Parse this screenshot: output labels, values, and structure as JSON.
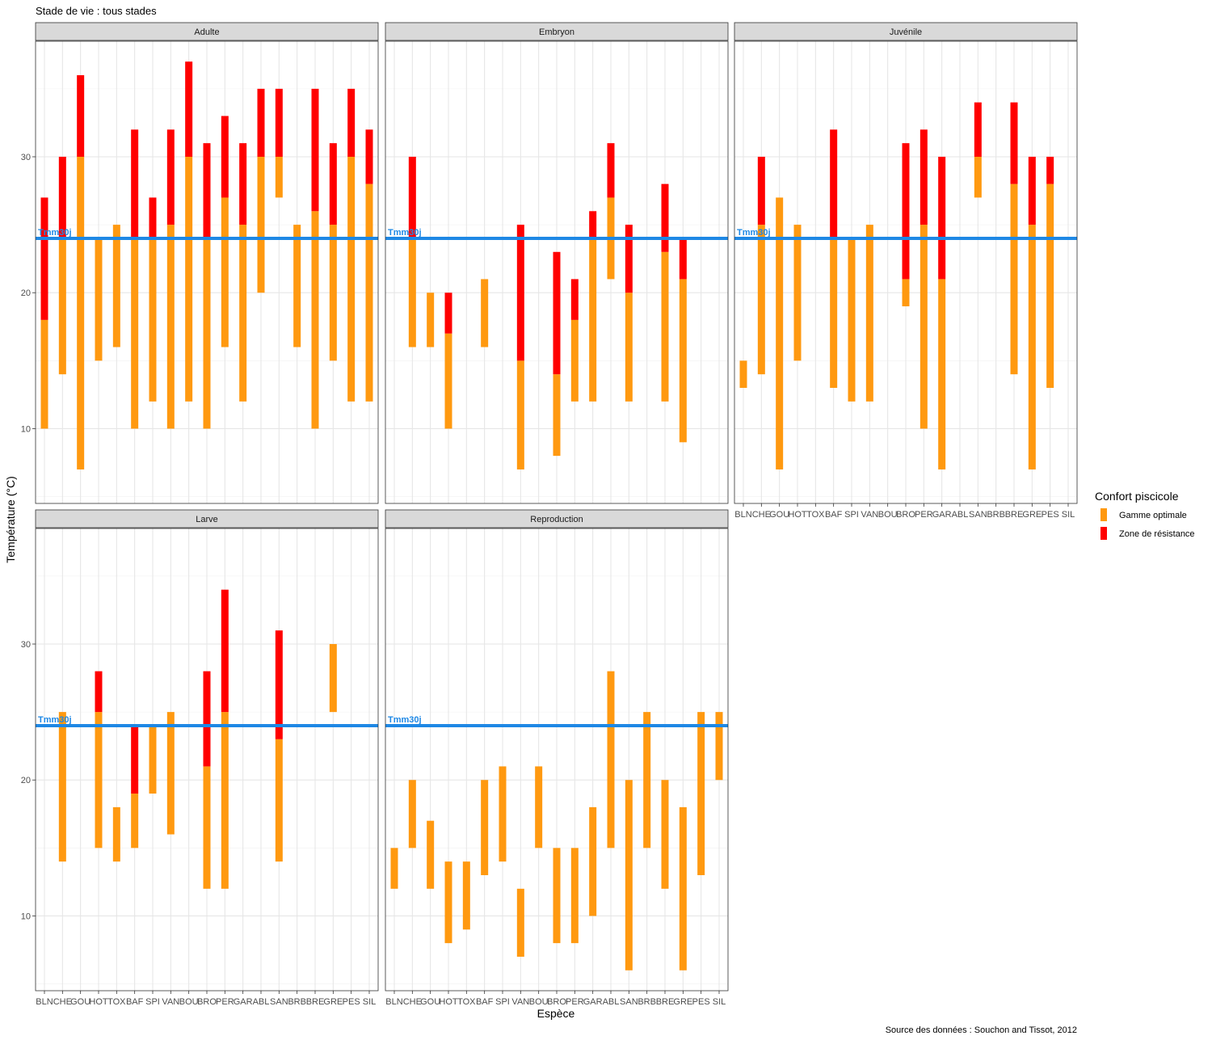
{
  "chart_data": {
    "type": "bar",
    "subtype": "range-bar-faceted",
    "title": "Stade de vie : tous stades",
    "xlabel": "Espèce",
    "ylabel": "Température (°C)",
    "caption": "Source des données : Souchon and Tissot, 2012",
    "ylim": [
      4.5,
      38.5
    ],
    "y_ticks": [
      10,
      20,
      30
    ],
    "grid": true,
    "categories": [
      "BLN",
      "CHE",
      "GOU",
      "HOT",
      "TOX",
      "BAF",
      "SPI",
      "VAN",
      "BOU",
      "BRO",
      "PER",
      "GAR",
      "ABL",
      "SAN",
      "BRB",
      "BRE",
      "GRE",
      "PES",
      "SIL"
    ],
    "reference_line": {
      "label": "Tmm30j",
      "value": 24,
      "color": "#1E88E5"
    },
    "legend": {
      "title": "Confort piscicole",
      "position": "right",
      "items": [
        {
          "label": "Gamme optimale",
          "color": "#FF9910"
        },
        {
          "label": "Zone de résistance",
          "color": "#FF0000"
        }
      ]
    },
    "facets": [
      {
        "name": "Adulte",
        "bars": [
          {
            "species": "BLN",
            "optimal": [
              10,
              18
            ],
            "resistance": [
              18,
              27
            ]
          },
          {
            "species": "CHE",
            "optimal": [
              14,
              24
            ],
            "resistance": [
              24,
              30
            ]
          },
          {
            "species": "GOU",
            "optimal": [
              7,
              30
            ],
            "resistance": [
              30,
              36
            ]
          },
          {
            "species": "HOT",
            "optimal": [
              15,
              24
            ]
          },
          {
            "species": "TOX",
            "optimal": [
              16,
              25
            ]
          },
          {
            "species": "BAF",
            "optimal": [
              10,
              24
            ],
            "resistance": [
              24,
              32
            ]
          },
          {
            "species": "SPI",
            "optimal": [
              12,
              24
            ],
            "resistance": [
              24,
              27
            ]
          },
          {
            "species": "VAN",
            "optimal": [
              10,
              25
            ],
            "resistance": [
              25,
              32
            ]
          },
          {
            "species": "BOU",
            "optimal": [
              12,
              30
            ],
            "resistance": [
              30,
              37
            ]
          },
          {
            "species": "BRO",
            "optimal": [
              10,
              24
            ],
            "resistance": [
              24,
              31
            ]
          },
          {
            "species": "PER",
            "optimal": [
              16,
              27
            ],
            "resistance": [
              27,
              33
            ]
          },
          {
            "species": "GAR",
            "optimal": [
              12,
              25
            ],
            "resistance": [
              25,
              31
            ]
          },
          {
            "species": "ABL",
            "optimal": [
              20,
              30
            ],
            "resistance": [
              30,
              35
            ]
          },
          {
            "species": "SAN",
            "optimal": [
              27,
              30
            ],
            "resistance": [
              30,
              35
            ]
          },
          {
            "species": "BRB",
            "optimal": [
              16,
              25
            ]
          },
          {
            "species": "BRE",
            "optimal": [
              10,
              26
            ],
            "resistance": [
              26,
              35
            ]
          },
          {
            "species": "GRE",
            "optimal": [
              15,
              25
            ],
            "resistance": [
              25,
              31
            ]
          },
          {
            "species": "PES",
            "optimal": [
              12,
              30
            ],
            "resistance": [
              30,
              35
            ]
          },
          {
            "species": "SIL",
            "optimal": [
              12,
              28
            ],
            "resistance": [
              28,
              32
            ]
          }
        ]
      },
      {
        "name": "Embryon",
        "bars": [
          {
            "species": "CHE",
            "optimal": [
              16,
              24
            ],
            "resistance": [
              24,
              30
            ]
          },
          {
            "species": "GOU",
            "optimal": [
              16,
              20
            ]
          },
          {
            "species": "HOT",
            "optimal": [
              10,
              17
            ],
            "resistance": [
              17,
              20
            ]
          },
          {
            "species": "BAF",
            "optimal": [
              16,
              21
            ]
          },
          {
            "species": "VAN",
            "optimal": [
              7,
              15
            ],
            "resistance": [
              15,
              25
            ]
          },
          {
            "species": "BRO",
            "optimal": [
              8,
              14
            ],
            "resistance": [
              14,
              23
            ]
          },
          {
            "species": "PER",
            "optimal": [
              12,
              18
            ],
            "resistance": [
              18,
              21
            ]
          },
          {
            "species": "GAR",
            "optimal": [
              12,
              24
            ],
            "resistance": [
              24,
              26
            ]
          },
          {
            "species": "ABL",
            "optimal": [
              21,
              27
            ],
            "resistance": [
              27,
              31
            ]
          },
          {
            "species": "SAN",
            "optimal": [
              12,
              20
            ],
            "resistance": [
              20,
              25
            ]
          },
          {
            "species": "BRE",
            "optimal": [
              12,
              23
            ],
            "resistance": [
              23,
              28
            ]
          },
          {
            "species": "GRE",
            "optimal": [
              9,
              21
            ],
            "resistance": [
              21,
              24
            ]
          }
        ]
      },
      {
        "name": "Juvénile",
        "bars": [
          {
            "species": "BLN",
            "optimal": [
              13,
              15
            ]
          },
          {
            "species": "CHE",
            "optimal": [
              14,
              25
            ],
            "resistance": [
              25,
              30
            ]
          },
          {
            "species": "GOU",
            "optimal": [
              7,
              27
            ]
          },
          {
            "species": "HOT",
            "optimal": [
              15,
              25
            ]
          },
          {
            "species": "BAF",
            "optimal": [
              13,
              24
            ],
            "resistance": [
              24,
              32
            ]
          },
          {
            "species": "SPI",
            "optimal": [
              12,
              24
            ]
          },
          {
            "species": "VAN",
            "optimal": [
              12,
              25
            ]
          },
          {
            "species": "BRO",
            "optimal": [
              19,
              21
            ],
            "resistance": [
              21,
              31
            ]
          },
          {
            "species": "PER",
            "optimal": [
              10,
              25
            ],
            "resistance": [
              25,
              32
            ]
          },
          {
            "species": "GAR",
            "optimal": [
              7,
              21
            ],
            "resistance": [
              21,
              30
            ]
          },
          {
            "species": "SAN",
            "optimal": [
              27,
              30
            ],
            "resistance": [
              30,
              34
            ]
          },
          {
            "species": "BRE",
            "optimal": [
              14,
              28
            ],
            "resistance": [
              28,
              34
            ]
          },
          {
            "species": "GRE",
            "optimal": [
              7,
              25
            ],
            "resistance": [
              25,
              30
            ]
          },
          {
            "species": "PES",
            "optimal": [
              13,
              28
            ],
            "resistance": [
              28,
              30
            ]
          }
        ]
      },
      {
        "name": "Larve",
        "bars": [
          {
            "species": "CHE",
            "optimal": [
              14,
              25
            ]
          },
          {
            "species": "HOT",
            "optimal": [
              15,
              25
            ],
            "resistance": [
              25,
              28
            ]
          },
          {
            "species": "TOX",
            "optimal": [
              14,
              18
            ]
          },
          {
            "species": "BAF",
            "optimal": [
              15,
              19
            ],
            "resistance": [
              19,
              24
            ]
          },
          {
            "species": "SPI",
            "optimal": [
              19,
              24
            ]
          },
          {
            "species": "VAN",
            "optimal": [
              16,
              25
            ]
          },
          {
            "species": "BRO",
            "optimal": [
              12,
              21
            ],
            "resistance": [
              21,
              28
            ]
          },
          {
            "species": "PER",
            "optimal": [
              12,
              25
            ],
            "resistance": [
              25,
              34
            ]
          },
          {
            "species": "SAN",
            "optimal": [
              14,
              23
            ],
            "resistance": [
              23,
              31
            ]
          },
          {
            "species": "GRE",
            "optimal": [
              25,
              30
            ]
          }
        ]
      },
      {
        "name": "Reproduction",
        "bars": [
          {
            "species": "BLN",
            "optimal": [
              12,
              15
            ]
          },
          {
            "species": "CHE",
            "optimal": [
              15,
              20
            ]
          },
          {
            "species": "GOU",
            "optimal": [
              12,
              17
            ]
          },
          {
            "species": "HOT",
            "optimal": [
              8,
              14
            ]
          },
          {
            "species": "TOX",
            "optimal": [
              9,
              14
            ]
          },
          {
            "species": "BAF",
            "optimal": [
              13,
              20
            ]
          },
          {
            "species": "SPI",
            "optimal": [
              14,
              21
            ]
          },
          {
            "species": "VAN",
            "optimal": [
              7,
              12
            ]
          },
          {
            "species": "BOU",
            "optimal": [
              15,
              21
            ]
          },
          {
            "species": "BRO",
            "optimal": [
              8,
              15
            ]
          },
          {
            "species": "PER",
            "optimal": [
              8,
              15
            ]
          },
          {
            "species": "GAR",
            "optimal": [
              10,
              18
            ]
          },
          {
            "species": "ABL",
            "optimal": [
              15,
              28
            ]
          },
          {
            "species": "SAN",
            "optimal": [
              6,
              20
            ]
          },
          {
            "species": "BRB",
            "optimal": [
              15,
              25
            ]
          },
          {
            "species": "BRE",
            "optimal": [
              12,
              20
            ]
          },
          {
            "species": "GRE",
            "optimal": [
              6,
              18
            ]
          },
          {
            "species": "PES",
            "optimal": [
              13,
              25
            ]
          },
          {
            "species": "SIL",
            "optimal": [
              20,
              25
            ]
          }
        ]
      }
    ]
  }
}
